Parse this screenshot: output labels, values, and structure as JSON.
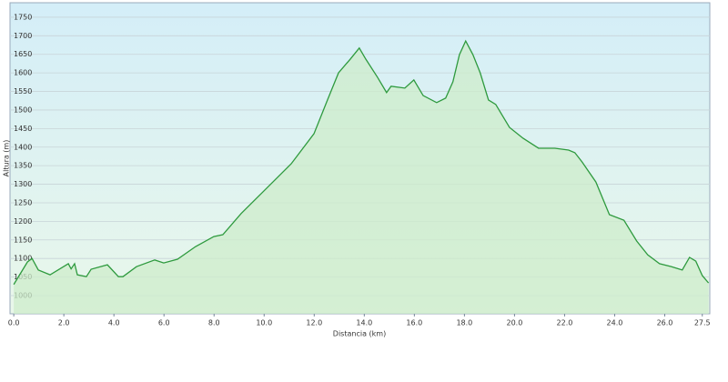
{
  "chart_data": {
    "type": "area",
    "x_label": "Distancia (km)",
    "y_label": "Altura (m)",
    "x": [
      0,
      0.55,
      0.73,
      0.98,
      1.45,
      2.18,
      2.29,
      2.43,
      2.54,
      2.9,
      3.09,
      3.74,
      4.18,
      4.36,
      4.9,
      5.63,
      5.99,
      6.54,
      7.26,
      7.99,
      8.35,
      9.08,
      9.99,
      11.08,
      11.99,
      12.24,
      12.53,
      12.97,
      13.44,
      13.8,
      14.06,
      14.53,
      14.89,
      15.07,
      15.62,
      15.98,
      16.35,
      16.89,
      17.25,
      17.54,
      17.8,
      18.05,
      18.34,
      18.63,
      18.96,
      19.25,
      19.8,
      20.34,
      20.96,
      21.61,
      22.16,
      22.41,
      22.7,
      23.25,
      23.79,
      24.37,
      24.88,
      25.32,
      25.79,
      26.26,
      26.7,
      26.99,
      27.24,
      27.5,
      27.75
    ],
    "values": [
      1030,
      1091,
      1100,
      1069,
      1056,
      1086,
      1072,
      1086,
      1056,
      1051,
      1071,
      1083,
      1051,
      1051,
      1078,
      1096,
      1088,
      1098,
      1132,
      1159,
      1164,
      1221,
      1282,
      1355,
      1436,
      1478,
      1527,
      1600,
      1637,
      1667,
      1637,
      1588,
      1547,
      1564,
      1559,
      1581,
      1539,
      1520,
      1532,
      1576,
      1649,
      1686,
      1649,
      1600,
      1527,
      1515,
      1453,
      1424,
      1397,
      1397,
      1392,
      1385,
      1360,
      1306,
      1218,
      1203,
      1147,
      1110,
      1086,
      1078,
      1069,
      1103,
      1093,
      1054,
      1034
    ],
    "color": "#2e9a3e",
    "xlim": [
      -0.15,
      27.8
    ],
    "xticks": [
      {
        "value": 0,
        "label": "0.0"
      },
      {
        "value": 2,
        "label": "2.0"
      },
      {
        "value": 4,
        "label": "4.0"
      },
      {
        "value": 6,
        "label": "6.0"
      },
      {
        "value": 8,
        "label": "8.0"
      },
      {
        "value": 10,
        "label": "10.0"
      },
      {
        "value": 12,
        "label": "12.0"
      },
      {
        "value": 14,
        "label": "14.0"
      },
      {
        "value": 16,
        "label": "16.0"
      },
      {
        "value": 18,
        "label": "18.0"
      },
      {
        "value": 20,
        "label": "20.0"
      },
      {
        "value": 22,
        "label": "22.0"
      },
      {
        "value": 24,
        "label": "24.0"
      },
      {
        "value": 26,
        "label": "26.0"
      },
      27.5
    ],
    "ylim": [
      951,
      1789
    ],
    "yticks": [
      1000,
      1050,
      1100,
      1150,
      1200,
      1250,
      1300,
      1350,
      1400,
      1450,
      1500,
      1550,
      1600,
      1650,
      1700,
      1750
    ],
    "grid": true
  }
}
